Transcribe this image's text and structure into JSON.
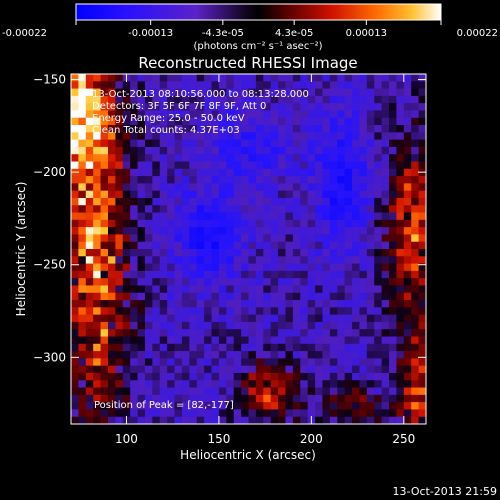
{
  "colorbar": {
    "tick_labels": [
      "-0.00022",
      "-0.00013",
      "-4.3e-05",
      "4.3e-05",
      "0.00013",
      "0.00022"
    ],
    "tick_values": [
      -0.00022,
      -0.00013,
      -4.3e-05,
      4.3e-05,
      0.00013,
      0.00022
    ],
    "range": [
      -0.00022,
      0.00022
    ],
    "unit_label": "(photons cm⁻² s⁻¹ asec⁻²)",
    "colors": [
      "#0000ff",
      "#3010ff",
      "#5020d0",
      "#300000",
      "#cc0000",
      "#ff4000",
      "#ff9000",
      "#ffd040",
      "#ffffff"
    ]
  },
  "chart_data": {
    "type": "heatmap",
    "title": "Reconstructed RHESSI Image",
    "xlabel": "Heliocentric X (arcsec)",
    "ylabel": "Heliocentric Y (arcsec)",
    "xlim": [
      70,
      262
    ],
    "ylim": [
      -336,
      -147
    ],
    "x_ticks": [
      100,
      150,
      200,
      250
    ],
    "y_ticks": [
      -150,
      -200,
      -250,
      -300
    ],
    "x_tick_labels": [
      "100",
      "150",
      "200",
      "250"
    ],
    "y_tick_labels": [
      "−150",
      "−200",
      "−250",
      "−300"
    ],
    "grid": false,
    "annotations": {
      "time_range": "13-Oct-2013 08:10:56.000 to 08:13:28.000",
      "detectors": "Detectors: 3F 5F 6F 7F 8F 9F, Att 0",
      "energy": "Energy Range: 25.0 - 50.0 keV",
      "method_counts": "Clean     Total counts: 4.37E+03",
      "peak": "Position of Peak = [82,-177]"
    },
    "peak_position": [
      82,
      -177
    ]
  },
  "footer": {
    "timestamp": "13-Oct-2013 21:59"
  }
}
